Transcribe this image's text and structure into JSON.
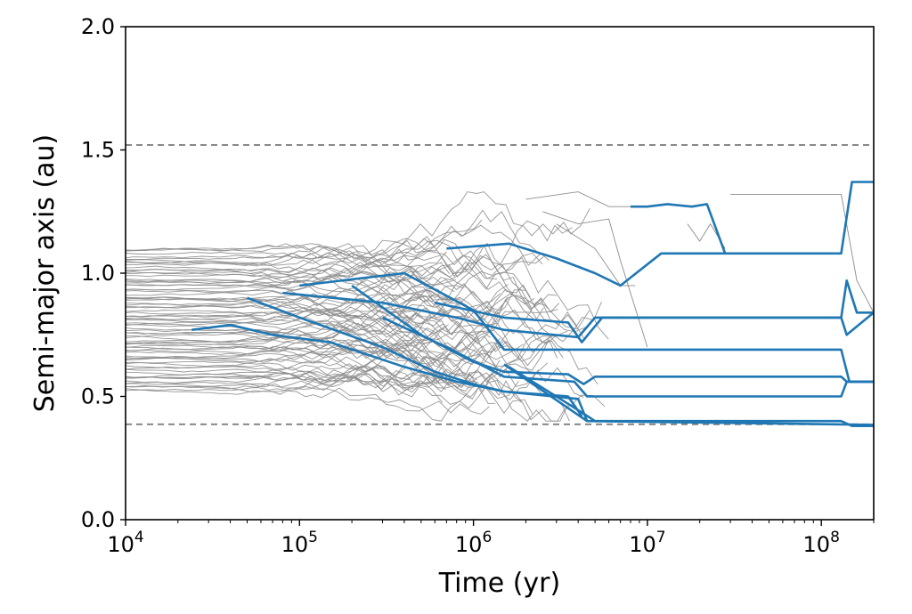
{
  "chart_data": {
    "type": "line",
    "xlabel": "Time (yr)",
    "ylabel": "Semi-major axis (au)",
    "x_scale": "log",
    "xlim": [
      10000,
      200000000
    ],
    "ylim": [
      0.0,
      2.0
    ],
    "xticks": [
      {
        "value": 10000,
        "base": "10",
        "exp": "4"
      },
      {
        "value": 100000,
        "base": "10",
        "exp": "5"
      },
      {
        "value": 1000000,
        "base": "10",
        "exp": "6"
      },
      {
        "value": 10000000,
        "base": "10",
        "exp": "7"
      },
      {
        "value": 100000000,
        "base": "10",
        "exp": "8"
      }
    ],
    "yticks": [
      {
        "value": 0.0,
        "label": "0.0"
      },
      {
        "value": 0.5,
        "label": "0.5"
      },
      {
        "value": 1.0,
        "label": "1.0"
      },
      {
        "value": 1.5,
        "label": "1.5"
      },
      {
        "value": 2.0,
        "label": "2.0"
      }
    ],
    "reference_lines": [
      {
        "y": 1.52,
        "style": "dashed",
        "color": "#808080"
      },
      {
        "y": 0.387,
        "style": "dashed",
        "color": "#808080"
      }
    ],
    "colors": {
      "background_paths": "#8c8c8c",
      "highlight_paths": "#1f77b4",
      "axes": "#000000"
    },
    "grid": false,
    "background_paths": {
      "count": 80,
      "start_range": [
        0.52,
        1.1
      ],
      "description_only": false
    },
    "series": [
      {
        "x": [
          1500000.0,
          4500000.0,
          200000000.0
        ],
        "y": [
          0.63,
          0.4,
          0.385
        ]
      },
      {
        "x": [
          1600000.0,
          3500000.0,
          4300000.0,
          5000000.0,
          130000000.0,
          150000000.0,
          200000000.0
        ],
        "y": [
          0.62,
          0.47,
          0.43,
          0.4,
          0.4,
          0.38,
          0.38
        ]
      },
      {
        "x": [
          300000.0,
          700000.0,
          1500000.0,
          3800000.0,
          4500000.0,
          130000000.0,
          140000000.0,
          200000000.0
        ],
        "y": [
          0.82,
          0.7,
          0.58,
          0.56,
          0.5,
          0.5,
          0.56,
          0.56
        ]
      },
      {
        "x": [
          200000.0,
          500000.0,
          1000000.0,
          1500000.0,
          3500000.0,
          4300000.0,
          5000000.0,
          130000000.0,
          140000000.0,
          200000000.0
        ],
        "y": [
          0.95,
          0.75,
          0.64,
          0.6,
          0.59,
          0.55,
          0.58,
          0.58,
          0.56,
          0.56
        ]
      },
      {
        "x": [
          100000.0,
          400000.0,
          1000000.0,
          1500000.0,
          4000000.0,
          5000000.0,
          130000000.0,
          145000000.0,
          200000000.0
        ],
        "y": [
          0.95,
          1.0,
          0.85,
          0.69,
          0.69,
          0.69,
          0.69,
          0.56,
          0.56
        ]
      },
      {
        "x": [
          80000.0,
          300000.0,
          800000.0,
          1500000.0,
          4000000.0,
          5000000.0,
          130000000.0,
          140000000.0,
          160000000.0,
          200000000.0
        ],
        "y": [
          0.92,
          0.88,
          0.82,
          0.77,
          0.74,
          0.82,
          0.82,
          0.97,
          0.84,
          0.84
        ]
      },
      {
        "x": [
          600000.0,
          1500000.0,
          3500000.0,
          4200000.0,
          4800000.0,
          5500000.0,
          130000000.0,
          140000000.0,
          200000000.0
        ],
        "y": [
          0.88,
          0.82,
          0.8,
          0.72,
          0.77,
          0.82,
          0.82,
          0.75,
          0.84
        ]
      },
      {
        "x": [
          700000.0,
          1600000.0,
          3000000.0,
          5000000.0,
          7000000.0,
          12000000.0,
          23000000.0,
          28000000.0,
          130000000.0,
          150000000.0,
          200000000.0
        ],
        "y": [
          1.1,
          1.12,
          1.06,
          1.0,
          0.95,
          1.08,
          1.08,
          1.08,
          1.08,
          1.37,
          1.37
        ]
      },
      {
        "x": [
          8000000.0,
          10000000.0,
          13000000.0,
          18000000.0,
          22000000.0,
          28000000.0
        ],
        "y": [
          1.27,
          1.27,
          1.28,
          1.27,
          1.28,
          1.08
        ]
      },
      {
        "x": [
          24000.0,
          40000.0,
          70000.0,
          150000.0,
          400000.0,
          800000.0,
          1500000.0,
          4000000.0,
          4500000.0
        ],
        "y": [
          0.77,
          0.79,
          0.75,
          0.72,
          0.62,
          0.56,
          0.52,
          0.49,
          0.4
        ]
      },
      {
        "x": [
          50000.0,
          100000.0,
          300000.0,
          600000.0,
          1000000.0,
          1500000.0,
          3500000.0,
          4200000.0
        ],
        "y": [
          0.9,
          0.82,
          0.7,
          0.6,
          0.55,
          0.52,
          0.5,
          0.42
        ]
      }
    ]
  }
}
